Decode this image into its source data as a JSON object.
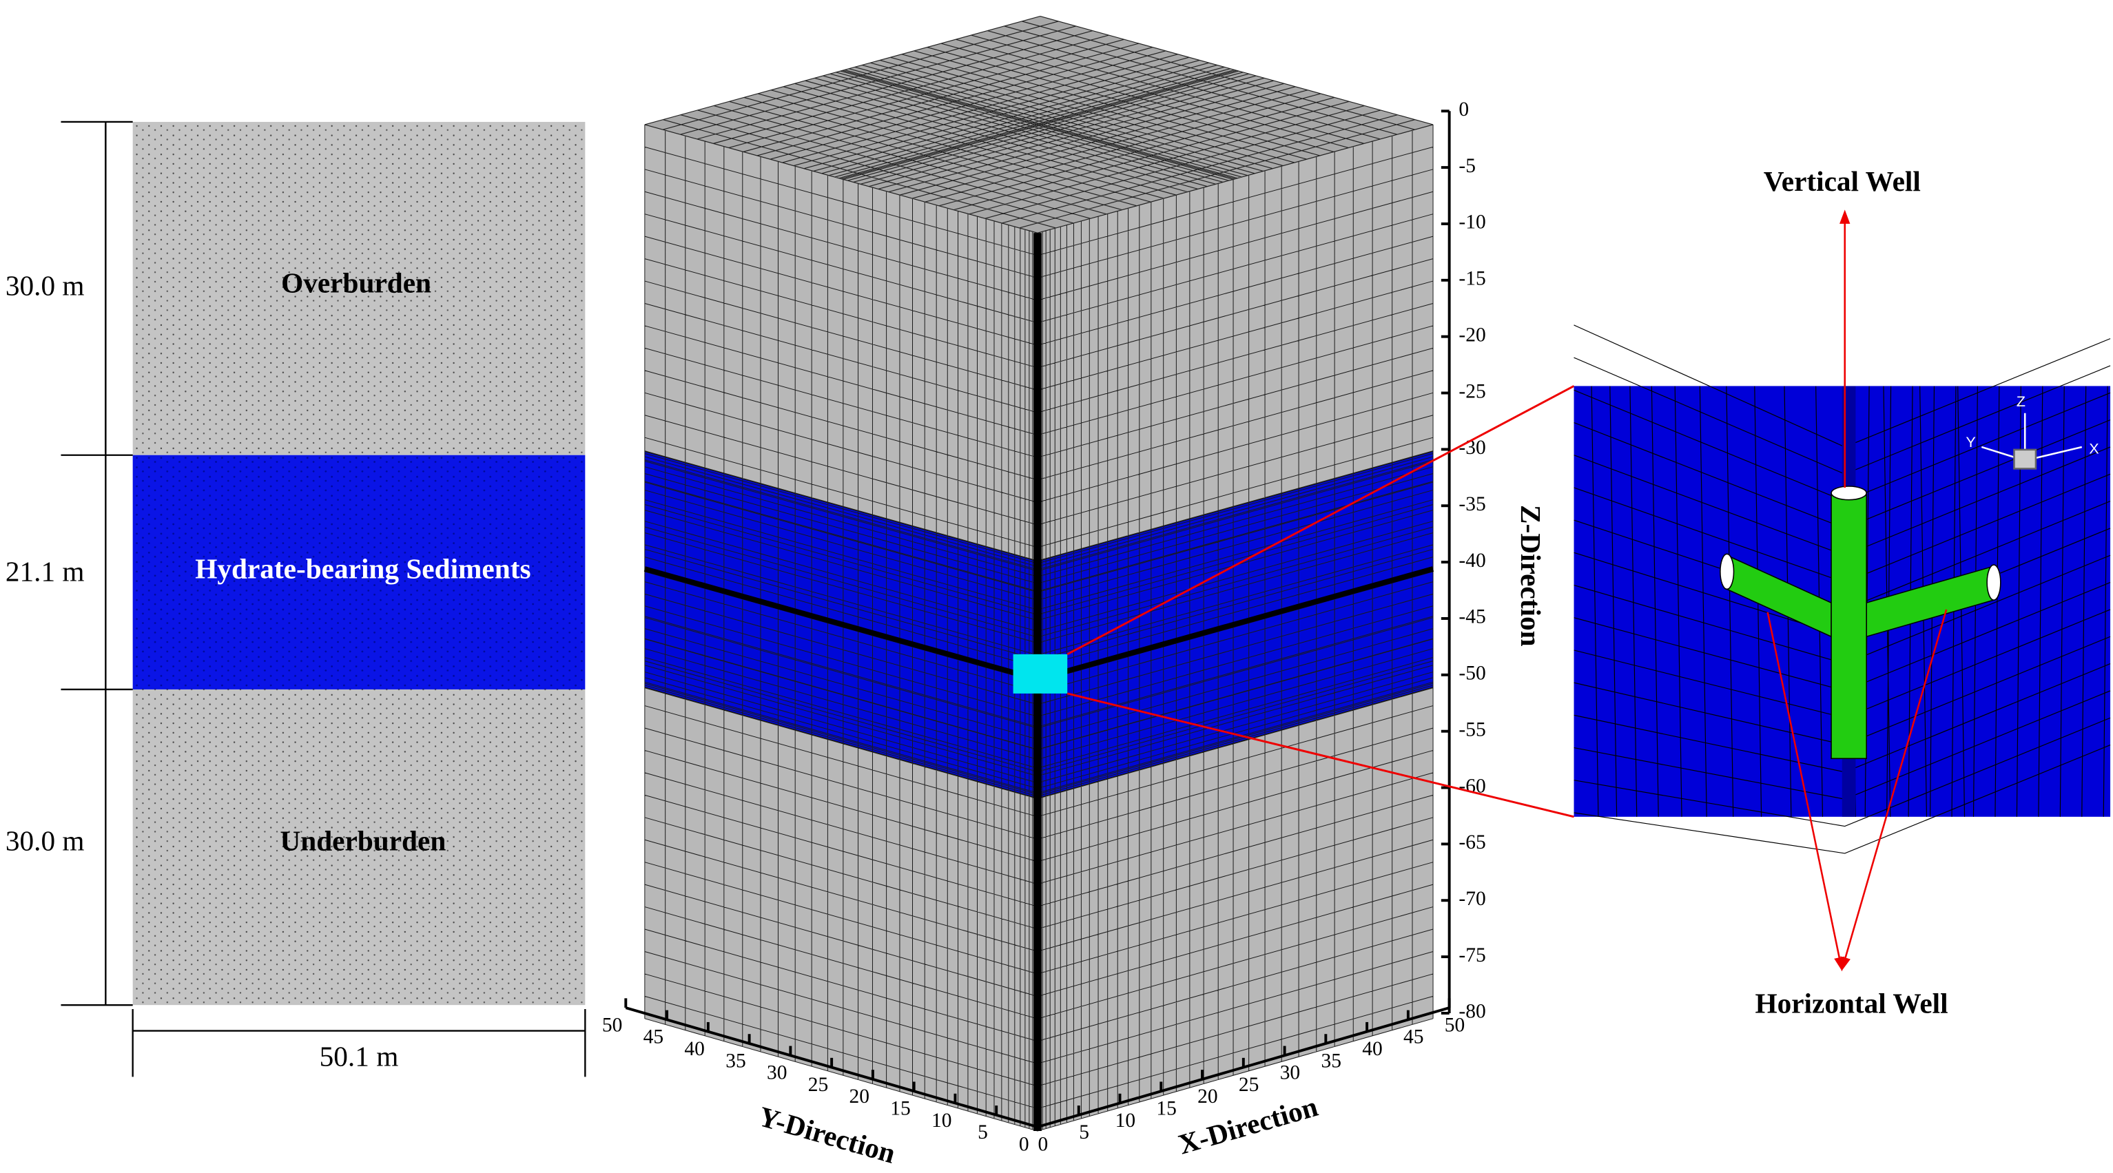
{
  "left_panel": {
    "layers": [
      {
        "label": "Overburden",
        "thickness": "30.0 m"
      },
      {
        "label": "Hydrate-bearing Sediments",
        "thickness": "21.1 m"
      },
      {
        "label": "Underburden",
        "thickness": "30.0 m"
      }
    ],
    "width": "50.1 m"
  },
  "mesh": {
    "z_axis": {
      "label": "Z-Direction",
      "ticks": [
        0,
        -5,
        -10,
        -15,
        -20,
        -25,
        -30,
        -35,
        -40,
        -45,
        -50,
        -55,
        -60,
        -65,
        -70,
        -75,
        -80
      ]
    },
    "y_axis": {
      "label": "Y-Direction",
      "ticks": [
        50,
        45,
        40,
        35,
        30,
        25,
        20,
        15,
        10,
        5,
        0
      ]
    },
    "x_axis": {
      "label": "X-Direction",
      "ticks": [
        0,
        5,
        10,
        15,
        20,
        25,
        30,
        35,
        40,
        45,
        50
      ]
    }
  },
  "inset": {
    "vertical_label": "Vertical Well",
    "horizontal_label": "Horizontal Well",
    "triad": {
      "z": "Z",
      "y": "Y",
      "x": "X"
    }
  }
}
